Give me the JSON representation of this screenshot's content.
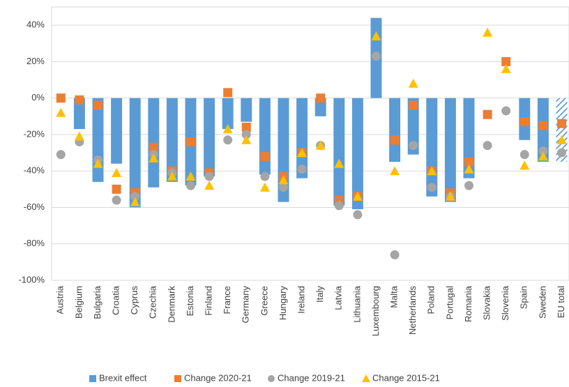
{
  "chart_data": {
    "type": "bar",
    "categories": [
      "Austria",
      "Belgium",
      "Bulgaria",
      "Croatia",
      "Cyprus",
      "Czechia",
      "Denmark",
      "Estonia",
      "Finland",
      "France",
      "Germany",
      "Greece",
      "Hungary",
      "Ireland",
      "Italy",
      "Latvia",
      "Lithuania",
      "Luxembourg",
      "Malta",
      "Netherlands",
      "Poland",
      "Portugal",
      "Romania",
      "Slovakia",
      "Slovenia",
      "Spain",
      "Sweden",
      "EU total"
    ],
    "series": [
      {
        "name": "Brexit effect",
        "color": "#5b9bd5",
        "marker": "bar",
        "hatched_index": 27,
        "values": [
          0,
          -17,
          -46,
          -36,
          -60,
          -49,
          -46,
          -48,
          -43,
          -17,
          -13,
          -42,
          -57,
          -44,
          -10,
          -59,
          -61,
          44,
          -35,
          -31,
          -54,
          -57,
          -44,
          0,
          0,
          -23,
          -35,
          -35
        ]
      },
      {
        "name": "Change 2020-21",
        "color": "#ed7d31",
        "marker": "square",
        "values": [
          0,
          -1,
          -4,
          -50,
          -52,
          -27,
          -40,
          -24,
          -41,
          3,
          -16,
          -32,
          -43,
          -30,
          0,
          -56,
          -54,
          null,
          -23,
          -4,
          -40,
          -52,
          -35,
          -9,
          20,
          -13,
          -15,
          -14
        ]
      },
      {
        "name": "Change 2019-21",
        "color": "#a5a5a5",
        "marker": "circle",
        "values": [
          -31,
          -24,
          -34,
          -56,
          -54,
          -31,
          -41,
          -48,
          -43,
          -23,
          -20,
          -43,
          -49,
          -39,
          -26,
          -59,
          -64,
          23,
          -86,
          -26,
          -49,
          -54,
          -48,
          -26,
          -7,
          -31,
          -29,
          -30
        ]
      },
      {
        "name": "Change 2015-21",
        "color": "#ffc000",
        "marker": "triangle",
        "values": [
          -8,
          -21,
          -36,
          -41,
          -57,
          -33,
          -43,
          -43,
          -48,
          -17,
          -23,
          -49,
          -45,
          -30,
          -26,
          -36,
          -54,
          34,
          -40,
          8,
          -40,
          -54,
          -39,
          36,
          16,
          -37,
          -32,
          -23
        ]
      }
    ],
    "ylim": [
      -100,
      50
    ],
    "yticks": [
      {
        "value": -100,
        "label": "-100%"
      },
      {
        "value": -80,
        "label": "-80%"
      },
      {
        "value": -60,
        "label": "-60%"
      },
      {
        "value": -40,
        "label": "-40%"
      },
      {
        "value": -20,
        "label": "-20%"
      },
      {
        "value": 0,
        "label": "0%"
      },
      {
        "value": 20,
        "label": "20%"
      },
      {
        "value": 40,
        "label": "40%"
      }
    ],
    "grid": true,
    "legend": "bottom"
  }
}
